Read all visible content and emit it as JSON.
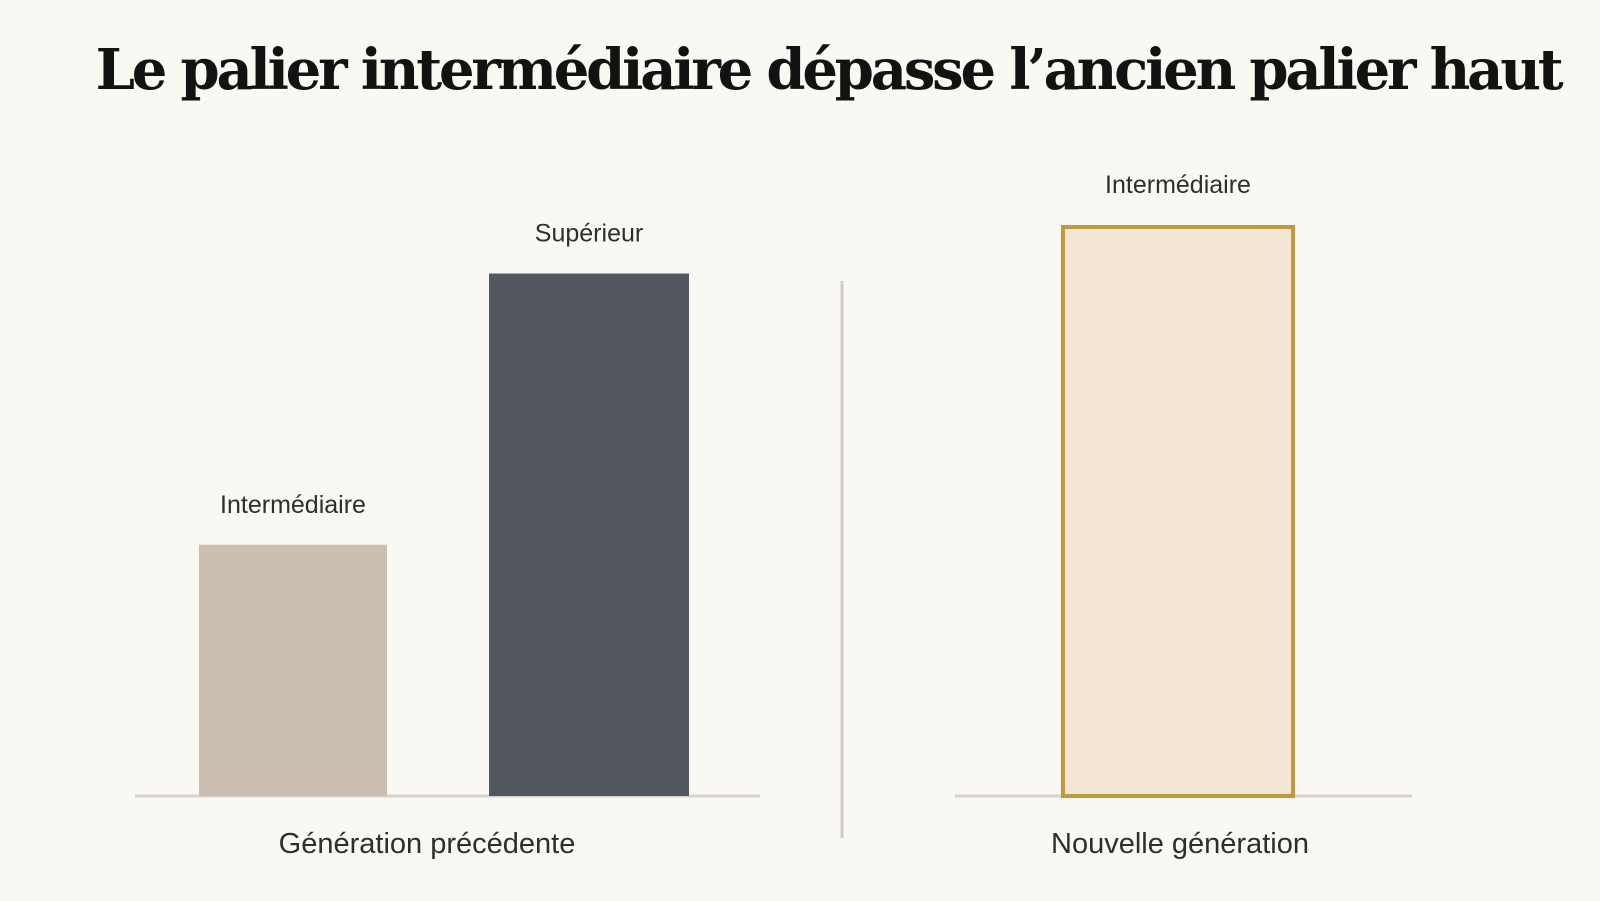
{
  "slide": {
    "title": "Le palier intermédiaire dépasse l’ancien palier haut"
  },
  "chart_data": {
    "type": "bar",
    "title": "Le palier intermédiaire dépasse l’ancien palier haut",
    "axis_values_shown": false,
    "grid": false,
    "panels": [
      {
        "name": "Génération précédente",
        "categories": [
          "Intermédiaire",
          "Supérieur"
        ],
        "values": [
          0.44,
          0.915
        ],
        "colors": [
          "#c9beb0",
          "#51565f"
        ],
        "outline": [
          null,
          null
        ]
      },
      {
        "name": "Nouvelle génération",
        "categories": [
          "Intermédiaire"
        ],
        "values": [
          1.0
        ],
        "colors": [
          "#f3e6d4"
        ],
        "outline": [
          "#c19a40"
        ]
      }
    ],
    "baseline_color": "#d6d3cc",
    "divider_color": "#cfccc5"
  }
}
